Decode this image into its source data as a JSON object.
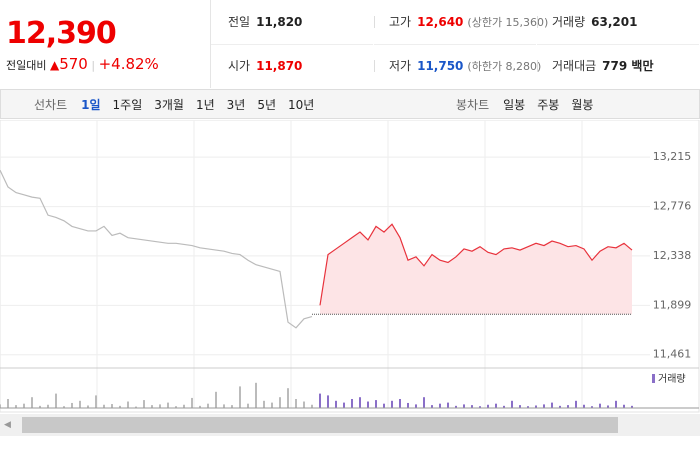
{
  "quote": {
    "price": "12,390",
    "change_label": "전일대비",
    "change": "570",
    "change_pct": "+4.82%"
  },
  "stats": [
    [
      {
        "label": "전일",
        "value": "11,820"
      },
      {
        "label": "고가",
        "value": "12,640",
        "note": "(상한가 15,360)",
        "color": "#e00"
      },
      {
        "label": "거래량",
        "value": "63,201"
      }
    ],
    [
      {
        "label": "시가",
        "value": "11,870",
        "color": "#e00"
      },
      {
        "label": "저가",
        "value": "11,750",
        "note": "(하한가 8,280)",
        "color": "#1a56c8"
      },
      {
        "label": "거래대금",
        "value": "779 백만"
      }
    ]
  ],
  "tabs": {
    "line": {
      "label": "선차트",
      "items": [
        "1일",
        "1주일",
        "3개월",
        "1년",
        "3년",
        "5년",
        "10년"
      ],
      "active": 0
    },
    "candle": {
      "label": "봉차트",
      "items": [
        "일봉",
        "주봉",
        "월봉"
      ]
    }
  },
  "chart_data": {
    "type": "line",
    "ylim": [
      11370,
      13500
    ],
    "yticks": [
      {
        "value": 13215,
        "label": "13,215"
      },
      {
        "value": 12776,
        "label": "12,776"
      },
      {
        "value": 12338,
        "label": "12,338"
      },
      {
        "value": 11899,
        "label": "11,899"
      },
      {
        "value": 11461,
        "label": "11,461"
      }
    ],
    "reference_line": 11820,
    "series": [
      {
        "color": "#bbbbbb",
        "values": [
          13100,
          12950,
          12900,
          12880,
          12860,
          12850,
          12700,
          12680,
          12650,
          12600,
          12580,
          12560,
          12560,
          12600,
          12520,
          12540,
          12500,
          12490,
          12480,
          12470,
          12460,
          12450,
          12450,
          12440,
          12430,
          12410,
          12400,
          12390,
          12380,
          12360,
          12350,
          12300,
          12260,
          12240,
          12220,
          12200,
          11750,
          11700,
          11780,
          11800,
          null,
          null,
          null,
          null,
          null,
          null,
          null,
          null,
          null,
          null,
          null,
          null,
          null,
          null,
          null,
          null,
          null,
          null,
          null,
          null,
          null,
          null,
          null,
          null,
          null,
          null,
          null,
          null,
          null,
          null,
          null,
          null,
          null,
          null,
          null,
          null,
          null,
          null,
          null,
          null
        ]
      },
      {
        "color": "#e8323c",
        "fill": "#fde4e6",
        "values": [
          null,
          null,
          null,
          null,
          null,
          null,
          null,
          null,
          null,
          null,
          null,
          null,
          null,
          null,
          null,
          null,
          null,
          null,
          null,
          null,
          null,
          null,
          null,
          null,
          null,
          null,
          null,
          null,
          null,
          null,
          null,
          null,
          null,
          null,
          null,
          null,
          null,
          null,
          null,
          null,
          11900,
          12350,
          12400,
          12450,
          12500,
          12550,
          12480,
          12600,
          12550,
          12620,
          12500,
          12300,
          12330,
          12250,
          12350,
          12300,
          12280,
          12330,
          12400,
          12380,
          12420,
          12370,
          12350,
          12400,
          12410,
          12390,
          12420,
          12450,
          12430,
          12470,
          12450,
          12420,
          12430,
          12400,
          12300,
          12380,
          12420,
          12410,
          12450,
          12390
        ]
      }
    ],
    "volume": {
      "name": "거래량",
      "color": "#8a6fc8",
      "y2lim": [
        0,
        100
      ],
      "values": [
        10,
        25,
        8,
        12,
        30,
        6,
        9,
        40,
        5,
        14,
        20,
        7,
        35,
        9,
        11,
        6,
        18,
        4,
        22,
        8,
        10,
        15,
        5,
        9,
        28,
        6,
        12,
        45,
        10,
        8,
        60,
        12,
        70,
        20,
        15,
        30,
        55,
        25,
        18,
        9,
        40,
        35,
        20,
        15,
        25,
        30,
        18,
        22,
        12,
        20,
        25,
        14,
        10,
        30,
        8,
        12,
        15,
        6,
        10,
        8,
        5,
        9,
        12,
        6,
        20,
        8,
        5,
        7,
        10,
        15,
        6,
        8,
        20,
        9,
        5,
        12,
        7,
        20,
        9,
        6
      ]
    }
  }
}
